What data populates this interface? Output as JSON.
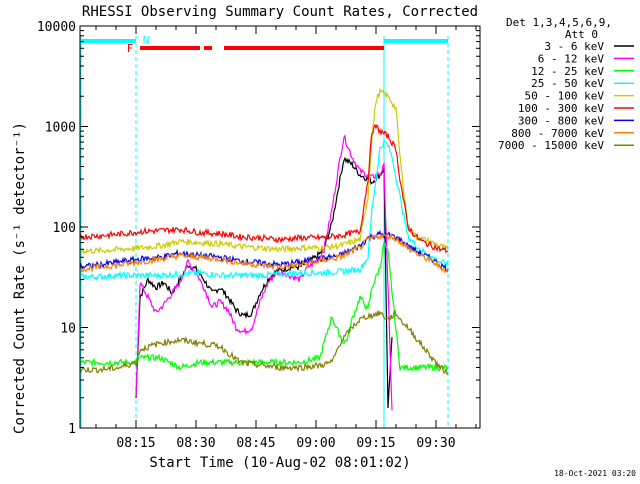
{
  "chart_data": {
    "type": "line",
    "title": "RHESSI Observing Summary Count Rates, Corrected",
    "xlabel": "Start Time (10-Aug-02 08:01:02)",
    "ylabel": "Corrected Count Rate (s⁻¹ detector⁻¹)",
    "yscale": "log",
    "ylim": [
      1,
      10000
    ],
    "xlim_minutes": [
      0,
      100
    ],
    "x_ticks": [
      {
        "minute": 14,
        "label": "08:15"
      },
      {
        "minute": 29,
        "label": "08:30"
      },
      {
        "minute": 44,
        "label": "08:45"
      },
      {
        "minute": 59,
        "label": "09:00"
      },
      {
        "minute": 74,
        "label": "09:15"
      },
      {
        "minute": 89,
        "label": "09:30"
      }
    ],
    "y_ticks": [
      {
        "value": 1,
        "label": "1"
      },
      {
        "value": 10,
        "label": "10"
      },
      {
        "value": 100,
        "label": "100"
      },
      {
        "value": 1000,
        "label": "1000"
      },
      {
        "value": 10000,
        "label": "10000"
      }
    ],
    "legend_header": [
      "Det 1,3,4,5,6,9,",
      "Att 0"
    ],
    "legend_placement": "right",
    "series": [
      {
        "name": "3 - 6 keV",
        "color": "#000000",
        "x": [
          14,
          15,
          17,
          19,
          21,
          23,
          25,
          27,
          29,
          31,
          33,
          35,
          37,
          39,
          41,
          43,
          45,
          47,
          49,
          51,
          53,
          55,
          57,
          59,
          61,
          63,
          65,
          66,
          68,
          70,
          72,
          73,
          75,
          76,
          77,
          78
        ],
        "y": [
          2,
          20,
          30,
          25,
          28,
          22,
          30,
          42,
          38,
          30,
          22,
          25,
          20,
          15,
          13,
          14,
          22,
          30,
          36,
          38,
          40,
          40,
          45,
          50,
          60,
          110,
          300,
          480,
          420,
          330,
          300,
          280,
          330,
          380,
          1.5,
          8
        ]
      },
      {
        "name": "6 - 12 keV",
        "color": "#ff00ff",
        "x": [
          14,
          15,
          17,
          19,
          21,
          23,
          25,
          27,
          29,
          31,
          33,
          35,
          37,
          39,
          41,
          43,
          45,
          47,
          49,
          51,
          53,
          55,
          57,
          59,
          61,
          63,
          65,
          66,
          68,
          70,
          72,
          73,
          75,
          76,
          78
        ],
        "y": [
          2,
          28,
          20,
          14,
          17,
          22,
          28,
          45,
          35,
          25,
          16,
          18,
          15,
          10,
          9,
          10,
          18,
          28,
          35,
          35,
          32,
          30,
          40,
          45,
          60,
          150,
          480,
          800,
          500,
          360,
          330,
          310,
          340,
          400,
          1.5
        ]
      },
      {
        "name": "12 - 25 keV",
        "color": "#00ff00",
        "x": [
          0,
          5,
          10,
          14,
          15,
          20,
          25,
          30,
          35,
          40,
          45,
          50,
          55,
          60,
          61,
          63,
          64,
          66,
          67,
          68,
          70,
          72,
          73,
          75,
          76,
          77,
          80,
          85,
          90,
          92
        ],
        "y": [
          4.5,
          4.5,
          4.5,
          4.5,
          5,
          5,
          4,
          4.5,
          4.5,
          4.5,
          4.5,
          4.5,
          4.5,
          5,
          7,
          13,
          10,
          7,
          8,
          12,
          20,
          15,
          25,
          40,
          70,
          55,
          4,
          4,
          4,
          4
        ]
      },
      {
        "name": "25 - 50 keV",
        "color": "#00ffff",
        "x": [
          0,
          5,
          10,
          14,
          15,
          20,
          25,
          30,
          35,
          40,
          45,
          50,
          55,
          60,
          65,
          70,
          72,
          73,
          75,
          76,
          77,
          78,
          80,
          82,
          85,
          88,
          90,
          92
        ],
        "y": [
          32,
          32,
          33,
          33,
          33,
          33,
          34,
          35,
          33,
          33,
          33,
          34,
          35,
          35,
          36,
          38,
          50,
          150,
          600,
          700,
          650,
          500,
          200,
          80,
          60,
          50,
          45,
          42
        ]
      },
      {
        "name": "50 - 100 keV",
        "color": "#cccc00",
        "x": [
          0,
          5,
          10,
          15,
          20,
          25,
          30,
          35,
          40,
          45,
          50,
          55,
          60,
          65,
          70,
          72,
          73,
          74,
          75,
          77,
          79,
          80,
          82,
          84,
          86,
          88,
          90,
          92
        ],
        "y": [
          58,
          58,
          60,
          62,
          65,
          72,
          70,
          68,
          64,
          62,
          60,
          62,
          62,
          65,
          75,
          200,
          800,
          1800,
          2200,
          2000,
          1500,
          500,
          100,
          80,
          75,
          70,
          65,
          60
        ]
      },
      {
        "name": "100 - 300 keV",
        "color": "#ff0000",
        "x": [
          0,
          5,
          10,
          15,
          20,
          25,
          30,
          35,
          40,
          45,
          50,
          55,
          60,
          65,
          70,
          72,
          73,
          74,
          75,
          77,
          79,
          80,
          82,
          84,
          86,
          88,
          90,
          92
        ],
        "y": [
          80,
          82,
          85,
          90,
          92,
          95,
          88,
          86,
          80,
          78,
          75,
          78,
          78,
          82,
          90,
          300,
          900,
          1000,
          900,
          800,
          600,
          300,
          100,
          80,
          70,
          65,
          60,
          58
        ]
      },
      {
        "name": "300 - 800 keV",
        "color": "#0000ff",
        "x": [
          0,
          5,
          10,
          15,
          20,
          25,
          30,
          35,
          40,
          45,
          50,
          55,
          60,
          65,
          70,
          72,
          75,
          78,
          80,
          82,
          85,
          88,
          90,
          92
        ],
        "y": [
          40,
          42,
          45,
          48,
          50,
          55,
          52,
          50,
          46,
          44,
          42,
          45,
          48,
          52,
          65,
          78,
          85,
          82,
          75,
          65,
          55,
          48,
          42,
          38
        ]
      },
      {
        "name": "800 - 7000 keV",
        "color": "#ff8000",
        "x": [
          0,
          5,
          10,
          15,
          20,
          25,
          30,
          35,
          40,
          45,
          50,
          55,
          60,
          65,
          70,
          72,
          75,
          78,
          80,
          82,
          85,
          88,
          90,
          92
        ],
        "y": [
          38,
          40,
          42,
          45,
          48,
          52,
          50,
          48,
          44,
          42,
          40,
          42,
          46,
          50,
          62,
          75,
          82,
          80,
          72,
          62,
          52,
          46,
          40,
          36
        ]
      },
      {
        "name": "7000 - 15000 keV",
        "color": "#808000",
        "x": [
          0,
          5,
          10,
          14,
          15,
          20,
          25,
          30,
          35,
          40,
          45,
          50,
          55,
          60,
          63,
          65,
          68,
          70,
          72,
          74,
          75,
          77,
          79,
          80,
          82,
          85,
          88,
          90,
          92
        ],
        "y": [
          3.8,
          3.8,
          4,
          4.5,
          6,
          7,
          7.5,
          7,
          6.5,
          4.5,
          4.2,
          4,
          4,
          4.2,
          4.5,
          7,
          10,
          12,
          13,
          13.5,
          14,
          12,
          14,
          12,
          10,
          7,
          5,
          4,
          3.5
        ]
      }
    ],
    "annotations": {
      "night_bars": [
        {
          "start": 0,
          "end": 14
        },
        {
          "start": 76,
          "end": 92
        }
      ],
      "saa_flag_label": "F",
      "night_flag_label": "N",
      "saa_bar_segments": [
        {
          "start": 15,
          "end": 30
        },
        {
          "start": 31,
          "end": 33
        },
        {
          "start": 36,
          "end": 76
        }
      ],
      "vertical_markers": [
        {
          "minute": 14,
          "style": "dashed"
        },
        {
          "minute": 76,
          "style": "solid"
        },
        {
          "minute": 92,
          "style": "dashed"
        }
      ]
    }
  },
  "footer": {
    "date_stamp": "18-Oct-2021 03:20"
  }
}
